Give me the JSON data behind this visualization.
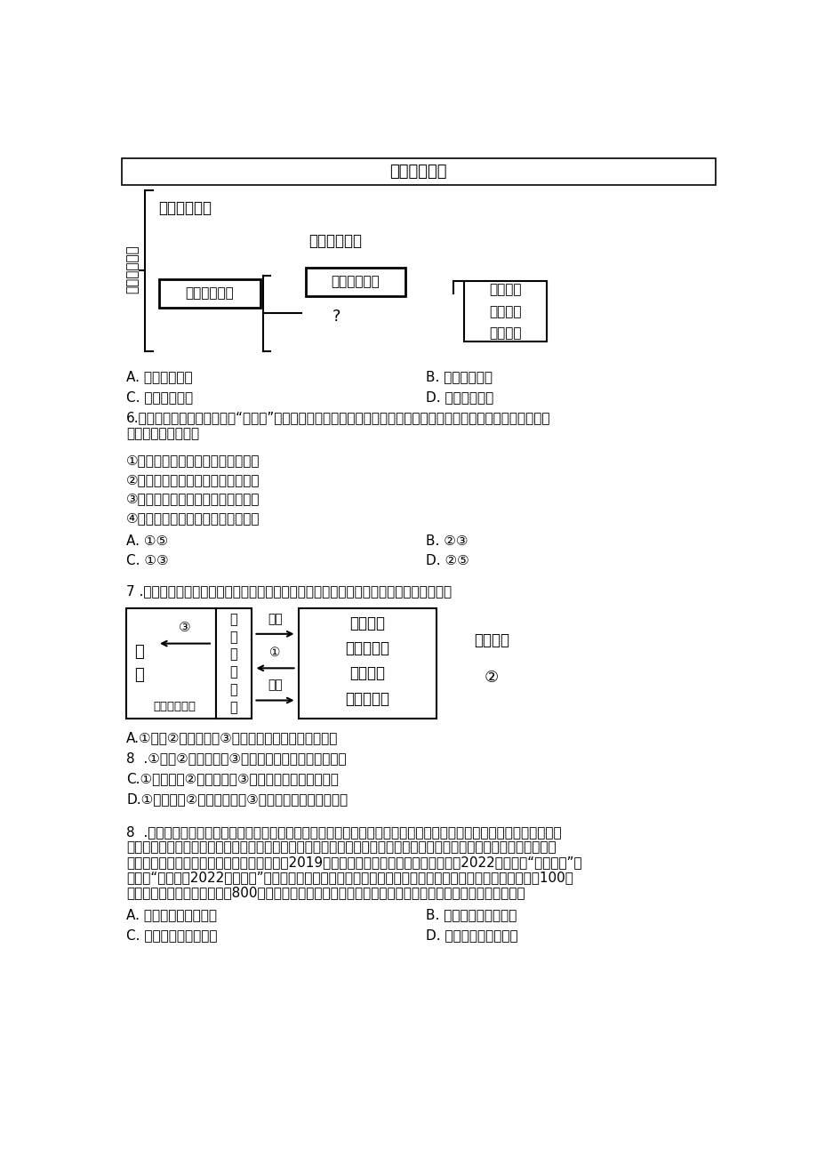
{
  "bg_color": "#ffffff",
  "text_color": "#000000",
  "diagram1_title": "根本活动准则",
  "diagram1_left_vertical": "保障寪法实施",
  "diagram1_item1": "坚持依寪治国",
  "diagram1_item2": "最高法律效力",
  "diagram1_box1": "加强寪法监督",
  "diagram1_box2": "监督权力行使",
  "diagram1_qmark": "?",
  "diagram1_right_box_lines": [
    "学习寪法",
    "认同寪法",
    "践行寪法"
  ],
  "q5_opts": [
    [
      "A. 维护寪法权威",
      "B. 规范权力行使"
    ],
    [
      "C. 理解权利义务",
      "D. 增强寪法意识"
    ]
  ],
  "q6_line1": "6.在郑州市近期开展城市管理“金点子”征集活动中，广大市民就落实路长制、垃圾清运、共享单车管理等问题积极献",
  "q6_line2": "计献策。市民这样做",
  "q6_items": [
    "①是直接管理国家和社会事务的表现",
    "②积极行使了监督权，彰显权利意识",
    "③是热爱家乡、有主人翁意识的表现",
    "④能够从根本上解决城市的治理难题"
  ],
  "q6_opts": [
    [
      "A. ①⑤",
      "B. ②③"
    ],
    [
      "C. ①③",
      "D. ②⑤"
    ]
  ],
  "q7_text": "7 .依据所学人民代表大会制度相关知识，请把下面图表补充完整。下列选项正确的是（）",
  "q7_rbox_items": [
    "人民政府",
    "监察委员会",
    "人民法院",
    "人民检察院"
  ],
  "q7_opts": [
    "A.①负责②民主集中制③国家的一切权力属于所有公民",
    "8  .①负责②民主集中制③国家的一切权力属于人大代表",
    "C.①对其负责②民主集中制③国家的一切权力属于人民",
    "D.①对其负责②规范权力运行③国家的一切权力属于人民"
  ],
  "q8_lines": [
    "8  .錢七虎院士六十年如一日，坚守爱党、报国、强军的赤子情怀，战斗在祖国的大山深处、戈壁荒漠、边防海岛等工程",
    "一线，为铸就坚不可摧的地下钙鐵长城默默奔献。他瞬准科技前沿，自觉把人生价值融入国家和军队建设伟大事业，为我",
    "国各个时期的防护工程建设作出了突出贡献。2019年錢七虎被授予国家最高科学技术奖，2022年被授予“八一勋章”，",
    "并入选“感动中国2022年度人物”。他还心系下一代，设立璃晖慈善基金，向贫困失学儿童和孤寡老人捐助累计100余",
    "万元，将国家最高科学技术奖800万元奖金全部捐出，重点资助西部贫困学子。这表明錢七虎院士享有了（）"
  ],
  "q8_opts": [
    [
      "A. 名誉权、财产使用权",
      "B. 荣誉权、物质帮助权"
    ],
    [
      "C. 名誉权、财产处分权",
      "D. 荣誉权、财产处分权"
    ]
  ]
}
